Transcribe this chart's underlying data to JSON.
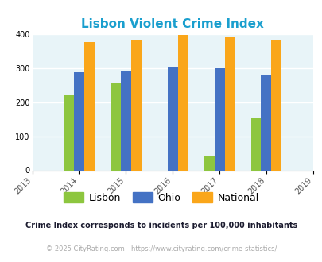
{
  "title": "Lisbon Violent Crime Index",
  "title_color": "#1a9fce",
  "years": [
    2013,
    2014,
    2015,
    2016,
    2017,
    2018,
    2019
  ],
  "bar_years": [
    2014,
    2015,
    2016,
    2017,
    2018
  ],
  "lisbon": [
    220,
    258,
    0,
    40,
    153
  ],
  "ohio": [
    287,
    291,
    301,
    300,
    280
  ],
  "national": [
    376,
    384,
    398,
    392,
    381
  ],
  "lisbon_color": "#8dc63f",
  "ohio_color": "#4472c4",
  "national_color": "#faa61a",
  "bg_color": "#e8f4f8",
  "ylim": [
    0,
    400
  ],
  "yticks": [
    0,
    100,
    200,
    300,
    400
  ],
  "bar_width": 0.22,
  "legend_labels": [
    "Lisbon",
    "Ohio",
    "National"
  ],
  "footnote1": "Crime Index corresponds to incidents per 100,000 inhabitants",
  "footnote2": "© 2025 CityRating.com - https://www.cityrating.com/crime-statistics/",
  "footnote1_color": "#1a1a2e",
  "footnote2_color": "#aaaaaa"
}
